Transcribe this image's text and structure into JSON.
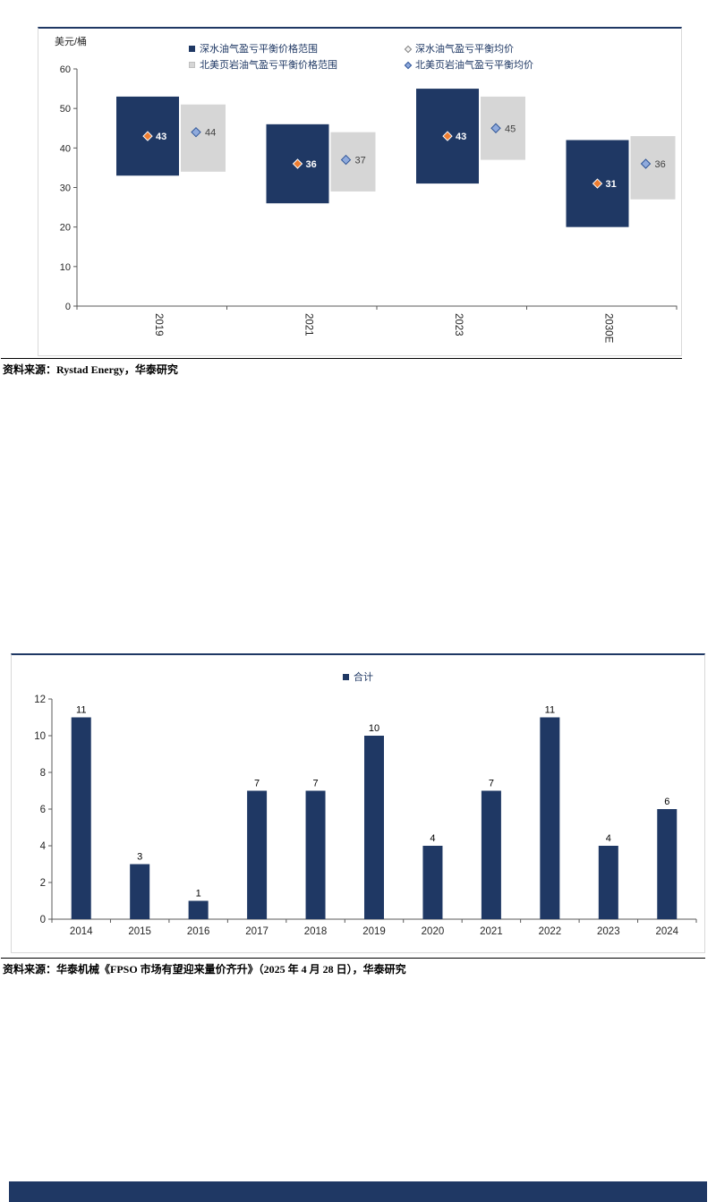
{
  "colors": {
    "navy": "#1F3864",
    "shale_gray": "#D6D6D6",
    "deep_avg_orange": "#ED7D31",
    "shale_avg_blue": "#8FAADC",
    "axis_line": "#595959",
    "axis_text": "#262626",
    "box_border": "#D9D9D9",
    "footer_band": "#1F3864"
  },
  "chart1": {
    "unit_label": "美元/桶",
    "source": "资料来源：Rystad Energy，华泰研究",
    "legend": [
      {
        "label": "深水油气盈亏平衡价格范围",
        "marker": "square",
        "fill": "#1F3864",
        "stroke": "#1F3864"
      },
      {
        "label": "深水油气盈亏平衡均价",
        "marker": "diamond",
        "fill": "#F2F2F2",
        "stroke": "#7F7F7F"
      },
      {
        "label": "北美页岩油气盈亏平衡价格范围",
        "marker": "square",
        "fill": "#D6D6D6",
        "stroke": "#BFBFBF"
      },
      {
        "label": "北美页岩油气盈亏平衡均价",
        "marker": "diamond",
        "fill": "#8FAADC",
        "stroke": "#2F5597"
      }
    ]
  },
  "chart2": {
    "source": "资料来源：华泰机械《FPSO 市场有望迎来量价齐升》（2025 年 4 月 28 日），华泰研究",
    "legend": [
      {
        "label": "合计",
        "marker": "square",
        "fill": "#1F3864",
        "stroke": "#1F3864"
      }
    ]
  },
  "chart_data": [
    {
      "type": "bar",
      "subtype": "floating-range-with-average-markers",
      "ylabel": "美元/桶",
      "ylim": [
        0,
        60
      ],
      "yticks": [
        0,
        10,
        20,
        30,
        40,
        50,
        60
      ],
      "legend_position": "top",
      "grid": false,
      "categories": [
        "2019",
        "2021",
        "2023",
        "2030E"
      ],
      "series": [
        {
          "name": "深水油气盈亏平衡价格范围",
          "role": "range",
          "color": "#1F3864",
          "low": [
            33,
            26,
            31,
            20
          ],
          "high": [
            53,
            46,
            55,
            42
          ]
        },
        {
          "name": "深水油气盈亏平衡均价",
          "role": "marker",
          "color": "#ED7D31",
          "values": [
            43,
            36,
            43,
            31
          ],
          "label_color": "#FFFFFF"
        },
        {
          "name": "北美页岩油气盈亏平衡价格范围",
          "role": "range",
          "color": "#D6D6D6",
          "low": [
            34,
            29,
            37,
            27
          ],
          "high": [
            51,
            44,
            53,
            43
          ]
        },
        {
          "name": "北美页岩油气盈亏平衡均价",
          "role": "marker",
          "color": "#8FAADC",
          "values": [
            44,
            37,
            45,
            36
          ],
          "label_color": "#404040"
        }
      ]
    },
    {
      "type": "bar",
      "ylim": [
        0,
        12
      ],
      "yticks": [
        0,
        2,
        4,
        6,
        8,
        10,
        12
      ],
      "legend_position": "top",
      "grid": false,
      "data_labels": true,
      "categories": [
        "2014",
        "2015",
        "2016",
        "2017",
        "2018",
        "2019",
        "2020",
        "2021",
        "2022",
        "2023",
        "2024"
      ],
      "series": [
        {
          "name": "合计",
          "color": "#1F3864",
          "values": [
            11,
            3,
            1,
            7,
            7,
            10,
            4,
            7,
            11,
            4,
            6
          ]
        }
      ]
    }
  ]
}
